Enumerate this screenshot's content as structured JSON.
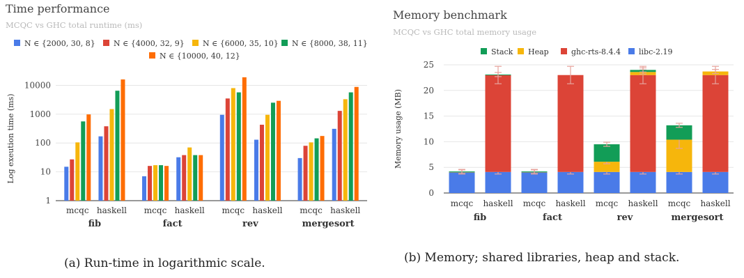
{
  "chart_data": [
    {
      "type": "bar",
      "title": "Time performance",
      "subtitle": "MCQC vs GHC total runtime (ms)",
      "ylabel": "Log exeution time (ms)",
      "yscale": "log",
      "ylim": [
        1,
        20000
      ],
      "yticks": [
        "1",
        "10",
        "100",
        "1000",
        "10000"
      ],
      "grid": true,
      "legend_position": "top",
      "groups": [
        "fib",
        "fact",
        "rev",
        "mergesort"
      ],
      "categories": [
        "mcqc",
        "haskell"
      ],
      "series": [
        {
          "name": "N ∈ {2000, 30, 8}",
          "color": "#4a7be8",
          "values": [
            [
              15,
              170
            ],
            [
              7,
              32
            ],
            [
              950,
              130
            ],
            [
              30,
              310
            ]
          ]
        },
        {
          "name": "N ∈ {4000, 32, 9}",
          "color": "#dc4437",
          "values": [
            [
              27,
              380
            ],
            [
              16,
              38
            ],
            [
              3500,
              430
            ],
            [
              80,
              1300
            ]
          ]
        },
        {
          "name": "N ∈ {6000, 35, 10}",
          "color": "#f6b60c",
          "values": [
            [
              105,
              1500
            ],
            [
              17,
              70
            ],
            [
              8000,
              950
            ],
            [
              105,
              3300
            ]
          ]
        },
        {
          "name": "N ∈ {8000, 38, 11}",
          "color": "#129d57",
          "values": [
            [
              560,
              6500
            ],
            [
              17,
              38
            ],
            [
              5700,
              2500
            ],
            [
              145,
              5700
            ]
          ]
        },
        {
          "name": "N ∈ {10000, 40, 12}",
          "color": "#fe6d04",
          "values": [
            [
              980,
              16000
            ],
            [
              16,
              38
            ],
            [
              19000,
              2900
            ],
            [
              175,
              8800
            ]
          ]
        }
      ],
      "caption": "(a) Run-time in logarithmic scale."
    },
    {
      "type": "bar",
      "stacked": true,
      "title": "Memory benchmark",
      "subtitle": "MCQC vs GHC total memory usage",
      "ylabel": "Memory usage (MB)",
      "ylim": [
        0,
        25
      ],
      "yticks": [
        "0",
        "5",
        "10",
        "15",
        "20",
        "25"
      ],
      "grid": true,
      "legend_position": "top",
      "groups": [
        "fib",
        "fact",
        "rev",
        "mergesort"
      ],
      "categories": [
        "mcqc",
        "haskell"
      ],
      "legend_order": [
        "Stack",
        "Heap",
        "ghc-rts-8.4.4",
        "libc-2.19"
      ],
      "series": [
        {
          "name": "libc-2.19",
          "color": "#4a7be8",
          "values": [
            [
              4.1,
              4.1
            ],
            [
              4.1,
              4.1
            ],
            [
              4.1,
              4.1
            ],
            [
              4.1,
              4.1
            ]
          ]
        },
        {
          "name": "ghc-rts-8.4.4",
          "color": "#dc4437",
          "values": [
            [
              0,
              18.9
            ],
            [
              0,
              18.9
            ],
            [
              0,
              18.9
            ],
            [
              0,
              18.9
            ]
          ]
        },
        {
          "name": "Heap",
          "color": "#f6b60c",
          "values": [
            [
              0.05,
              0
            ],
            [
              0.05,
              0
            ],
            [
              2,
              0.6
            ],
            [
              6.3,
              0.7
            ]
          ]
        },
        {
          "name": "Stack",
          "color": "#129d57",
          "values": [
            [
              0.05,
              0.1
            ],
            [
              0.05,
              0
            ],
            [
              3.4,
              0.4
            ],
            [
              2.8,
              0
            ]
          ]
        }
      ],
      "caption": "(b) Memory; shared libraries, heap and stack."
    }
  ]
}
